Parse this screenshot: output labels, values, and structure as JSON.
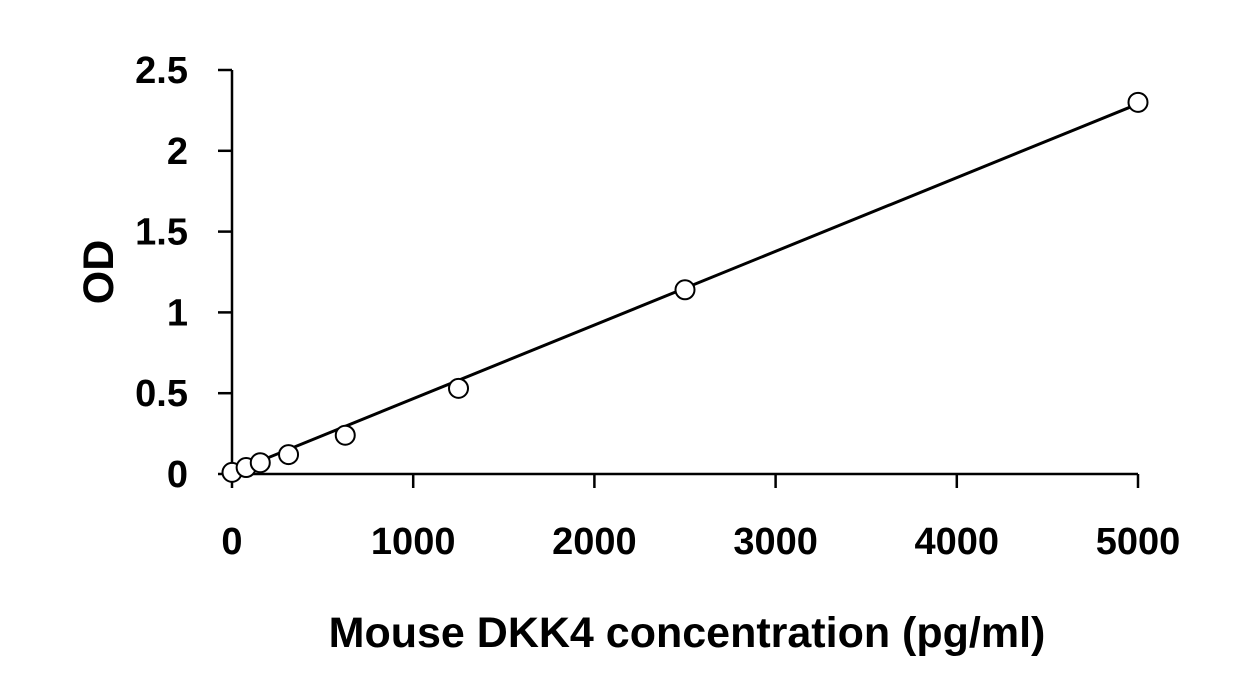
{
  "chart_data": {
    "type": "scatter",
    "title": "",
    "xlabel": "Mouse DKK4 concentration (pg/ml)",
    "ylabel": "OD",
    "xlim": [
      0,
      5000
    ],
    "ylim": [
      0,
      2.5
    ],
    "x_ticks": [
      "0",
      "1000",
      "2000",
      "3000",
      "4000",
      "5000"
    ],
    "y_ticks": [
      "0",
      "0.5",
      "1",
      "1.5",
      "2",
      "2.5"
    ],
    "grid": false,
    "legend": "none",
    "series": [
      {
        "x": [
          0,
          78,
          156,
          312,
          625,
          1250,
          2500,
          5000
        ],
        "y": [
          0.01,
          0.04,
          0.07,
          0.12,
          0.24,
          0.53,
          1.14,
          2.3
        ]
      }
    ],
    "trendline": {
      "type": "linear",
      "x": [
        0,
        5000
      ],
      "y": [
        0.01,
        2.29
      ]
    }
  }
}
